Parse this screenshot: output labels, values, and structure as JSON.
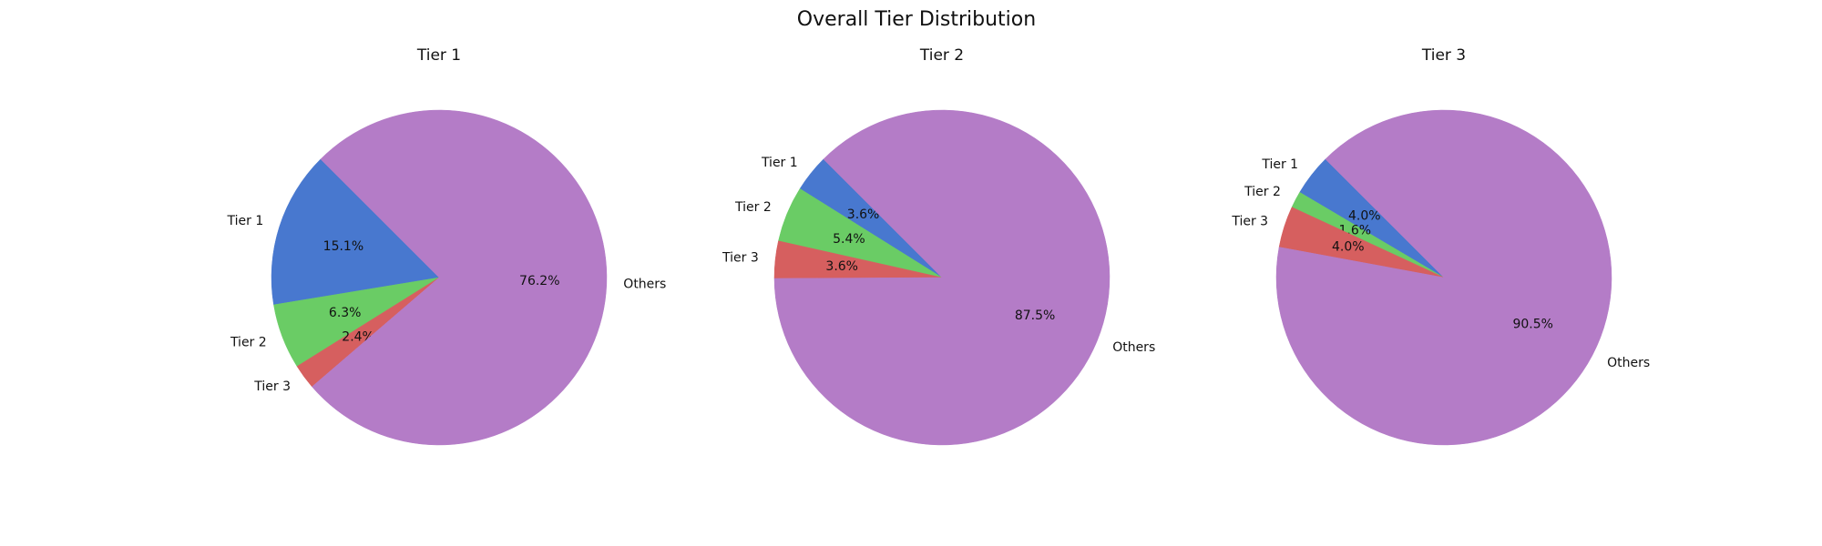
{
  "figure": {
    "title": "Overall Tier Distribution"
  },
  "chart_data": [
    {
      "type": "pie",
      "title": "Tier 1",
      "labels": [
        "Tier 1",
        "Tier 2",
        "Tier 3",
        "Others"
      ],
      "values": [
        15.1,
        6.3,
        2.4,
        76.2
      ],
      "value_labels": [
        "15.1%",
        "6.3%",
        "2.4%",
        "76.2%"
      ],
      "colors": [
        "#4878cf",
        "#6acc65",
        "#d65f5f",
        "#b47cc7"
      ],
      "start_angle_deg": 135,
      "direction": "counterclockwise"
    },
    {
      "type": "pie",
      "title": "Tier 2",
      "labels": [
        "Tier 1",
        "Tier 2",
        "Tier 3",
        "Others"
      ],
      "values": [
        3.6,
        5.4,
        3.6,
        87.5
      ],
      "value_labels": [
        "3.6%",
        "5.4%",
        "3.6%",
        "87.5%"
      ],
      "colors": [
        "#4878cf",
        "#6acc65",
        "#d65f5f",
        "#b47cc7"
      ],
      "start_angle_deg": 135,
      "direction": "counterclockwise"
    },
    {
      "type": "pie",
      "title": "Tier 3",
      "labels": [
        "Tier 1",
        "Tier 2",
        "Tier 3",
        "Others"
      ],
      "values": [
        4.0,
        1.6,
        4.0,
        90.5
      ],
      "value_labels": [
        "4.0%",
        "1.6%",
        "4.0%",
        "90.5%"
      ],
      "colors": [
        "#4878cf",
        "#6acc65",
        "#d65f5f",
        "#b47cc7"
      ],
      "start_angle_deg": 135,
      "direction": "counterclockwise"
    }
  ]
}
